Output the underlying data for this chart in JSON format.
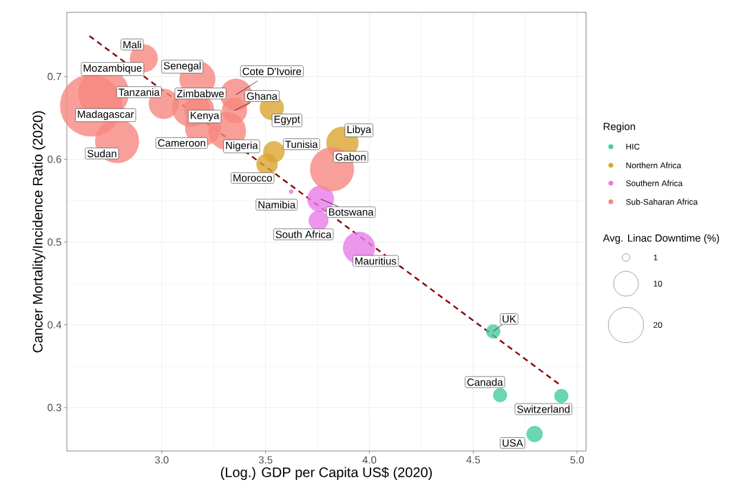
{
  "chart_data": {
    "type": "bubble",
    "xlabel": "(Log.) GDP per Capita US$ (2020)",
    "ylabel": "Cancer Mortality/Incidence Ratio (2020)",
    "legend_title": "Region",
    "legend": "right",
    "grid": true,
    "marker": "circle",
    "xlim": [
      2.543,
      5.043
    ],
    "xticks": [
      {
        "value": 3,
        "label": "3.0"
      },
      3.5,
      {
        "value": 4,
        "label": "4.0"
      },
      4.5,
      {
        "value": 5,
        "label": "5.0"
      }
    ],
    "ylim": [
      0.2475,
      0.7775
    ],
    "yticks": [
      0.3,
      0.4,
      0.5,
      0.6,
      0.7
    ],
    "size_legend": [
      {
        "value": 1,
        "label": "1"
      },
      {
        "value": 10,
        "label": "10"
      },
      {
        "value": 20,
        "label": "20"
      }
    ],
    "series": [
      {
        "name": "HIC",
        "color": "#45cc9f",
        "x": [
          4.596,
          4.629,
          4.924,
          4.795
        ],
        "values": [
          0.392,
          0.315,
          0.314,
          0.268
        ],
        "sizes": [
          3,
          3,
          3,
          4
        ]
      },
      {
        "name": "Northern Africa",
        "color": "#d9a530",
        "x": [
          3.53,
          3.54,
          3.507,
          3.87
        ],
        "values": [
          0.662,
          0.609,
          0.594,
          0.62
        ],
        "sizes": [
          9,
          7,
          7,
          16
        ]
      },
      {
        "name": "Southern Africa",
        "color": "#e87ce8",
        "x": [
          3.623,
          3.765,
          3.755,
          3.95
        ],
        "values": [
          0.561,
          0.552,
          0.526,
          0.493
        ],
        "sizes": [
          0.3,
          11,
          6,
          16
        ]
      },
      {
        "name": "Sub-Saharan Africa",
        "color": "#f8877f",
        "x": [
          2.914,
          2.72,
          3.172,
          3.358,
          3.01,
          3.14,
          3.35,
          2.66,
          3.18,
          3.199,
          3.315,
          3.82,
          2.785
        ],
        "values": [
          0.722,
          0.68,
          0.697,
          0.678,
          0.667,
          0.662,
          0.659,
          0.665,
          0.66,
          0.638,
          0.634,
          0.588,
          0.622
        ],
        "sizes": [
          12,
          40,
          20,
          16,
          14,
          22,
          10,
          60,
          14,
          20,
          22,
          30,
          30
        ]
      },
      {
        "type": "line",
        "color": "#8b0000",
        "line_style": "dashed",
        "marker": "none",
        "x": [
          2.652,
          4.92
        ],
        "values": [
          0.749,
          0.327
        ]
      }
    ],
    "annotations": [
      {
        "text": "Mali",
        "x": 2.914,
        "y": 0.722
      },
      {
        "text": "Mozambique",
        "x": 2.72,
        "y": 0.68
      },
      {
        "text": "Senegal",
        "x": 3.172,
        "y": 0.697
      },
      {
        "text": "Cote D'Ivoire",
        "x": 3.358,
        "y": 0.678
      },
      {
        "text": "Tanzania",
        "x": 3.01,
        "y": 0.667
      },
      {
        "text": "Zimbabwe",
        "x": 3.14,
        "y": 0.662
      },
      {
        "text": "Ghana",
        "x": 3.35,
        "y": 0.659
      },
      {
        "text": "Madagascar",
        "x": 2.66,
        "y": 0.665
      },
      {
        "text": "Kenya",
        "x": 3.18,
        "y": 0.66
      },
      {
        "text": "Egypt",
        "x": 3.53,
        "y": 0.662
      },
      {
        "text": "Libya",
        "x": 3.87,
        "y": 0.62
      },
      {
        "text": "Cameroon",
        "x": 3.199,
        "y": 0.638
      },
      {
        "text": "Nigeria",
        "x": 3.315,
        "y": 0.634
      },
      {
        "text": "Tunisia",
        "x": 3.54,
        "y": 0.609
      },
      {
        "text": "Gabon",
        "x": 3.82,
        "y": 0.588
      },
      {
        "text": "Sudan",
        "x": 2.785,
        "y": 0.622
      },
      {
        "text": "Morocco",
        "x": 3.507,
        "y": 0.594
      },
      {
        "text": "Namibia",
        "x": 3.623,
        "y": 0.561
      },
      {
        "text": "Botswana",
        "x": 3.765,
        "y": 0.552
      },
      {
        "text": "South Africa",
        "x": 3.755,
        "y": 0.526
      },
      {
        "text": "Mauritius",
        "x": 3.95,
        "y": 0.493
      },
      {
        "text": "UK",
        "x": 4.596,
        "y": 0.392
      },
      {
        "text": "Canada",
        "x": 4.629,
        "y": 0.315
      },
      {
        "text": "Switzerland",
        "x": 4.924,
        "y": 0.314
      },
      {
        "text": "USA",
        "x": 4.795,
        "y": 0.268
      },
      "Avg. Linac Downtime (%)"
    ]
  }
}
